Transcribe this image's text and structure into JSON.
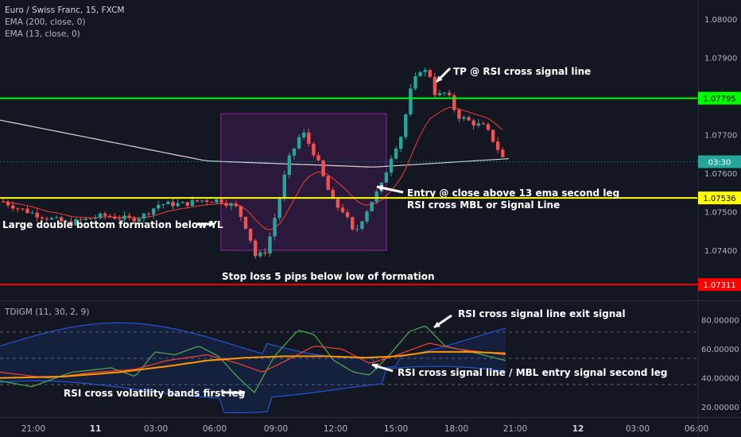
{
  "header": {
    "symbol": "Euro / Swiss Franc, 15, FXCM",
    "ema200": "EMA (200, close, 0)",
    "ema13": "EMA (13, close, 0)",
    "indicator": "TDIGM (11, 30, 2, 9)"
  },
  "colors": {
    "background": "#131722",
    "up": "#26a69a",
    "down": "#ef5350",
    "tp_line": "#00ff00",
    "entry_line": "#ffff00",
    "sl_line": "#ff0000",
    "ema200": "#d7d7d7",
    "ema13": "#e53935",
    "rsi": "#4caf50",
    "signal": "#f44336",
    "mbl": "#ff9800",
    "band": "#2962ff",
    "box": "#9c27b0"
  },
  "chart_data": [
    {
      "type": "candlestick",
      "title": "Euro / Swiss Franc, 15, FXCM",
      "y_ticks": [
        "1.08000",
        "1.07900",
        "1.07700",
        "1.07600",
        "1.07500",
        "1.07400"
      ],
      "ylim": [
        1.0727,
        1.0805
      ],
      "x_ticks": [
        "21:00",
        "11",
        "03:00",
        "06:00",
        "09:00",
        "12:00",
        "15:00",
        "18:00",
        "21:00",
        "12",
        "03:00",
        "06:00"
      ],
      "levels": [
        {
          "name": "TP level",
          "value": 1.07795,
          "label": "1.07795"
        },
        {
          "name": "Entry level",
          "value": 1.07536,
          "label": "1.07536"
        },
        {
          "name": "Stop loss",
          "value": 1.07311,
          "label": "1.07311"
        }
      ],
      "current_price_label": "03:30",
      "series": [
        {
          "name": "EMA (200, close, 0)"
        },
        {
          "name": "EMA (13, close, 0)"
        }
      ],
      "annotations": [
        {
          "text": "TP @ RSI cross signal line"
        },
        {
          "text": "Entry @ close above 13 ema second leg"
        },
        {
          "text": "RSI cross MBL or Signal Line"
        },
        {
          "text": "Large double bottom formation below YL"
        },
        {
          "text": "Stop loss 5 pips below low of formation"
        }
      ]
    },
    {
      "type": "line",
      "title": "TDIGM (11, 30, 2, 9)",
      "y_ticks": [
        "80.00000",
        "60.00000",
        "40.00000",
        "20.00000"
      ],
      "ylim": [
        13,
        93
      ],
      "series": [
        {
          "name": "RSI"
        },
        {
          "name": "Signal"
        },
        {
          "name": "MBL"
        },
        {
          "name": "Upper band"
        },
        {
          "name": "Lower band"
        }
      ],
      "annotations": [
        {
          "text": "RSI cross signal line exit signal"
        },
        {
          "text": "RSI cross signal line / MBL entry signal second leg"
        },
        {
          "text": "RSI cross volatility bands first leg"
        }
      ]
    }
  ]
}
